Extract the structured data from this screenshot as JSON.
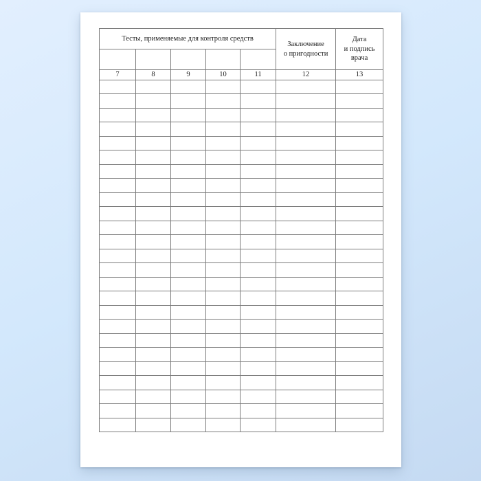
{
  "table": {
    "header": {
      "tests_group_label": "Тесты, применяемые для контроля средств",
      "conclusion_line1": "Заключение",
      "conclusion_line2": "о пригодности",
      "date_line1": "Дата",
      "date_line2": "и подпись",
      "date_line3": "врача"
    },
    "column_numbers": [
      "7",
      "8",
      "9",
      "10",
      "11",
      "12",
      "13"
    ],
    "body_row_count": 25,
    "body_column_count": 7
  },
  "colors": {
    "background_top": "#e2effe",
    "background_mid": "#d3e8fc",
    "background_bottom": "#c5daf2",
    "paper": "#ffffff",
    "table_border": "#7b7b7b",
    "text": "#1c1c1c"
  }
}
